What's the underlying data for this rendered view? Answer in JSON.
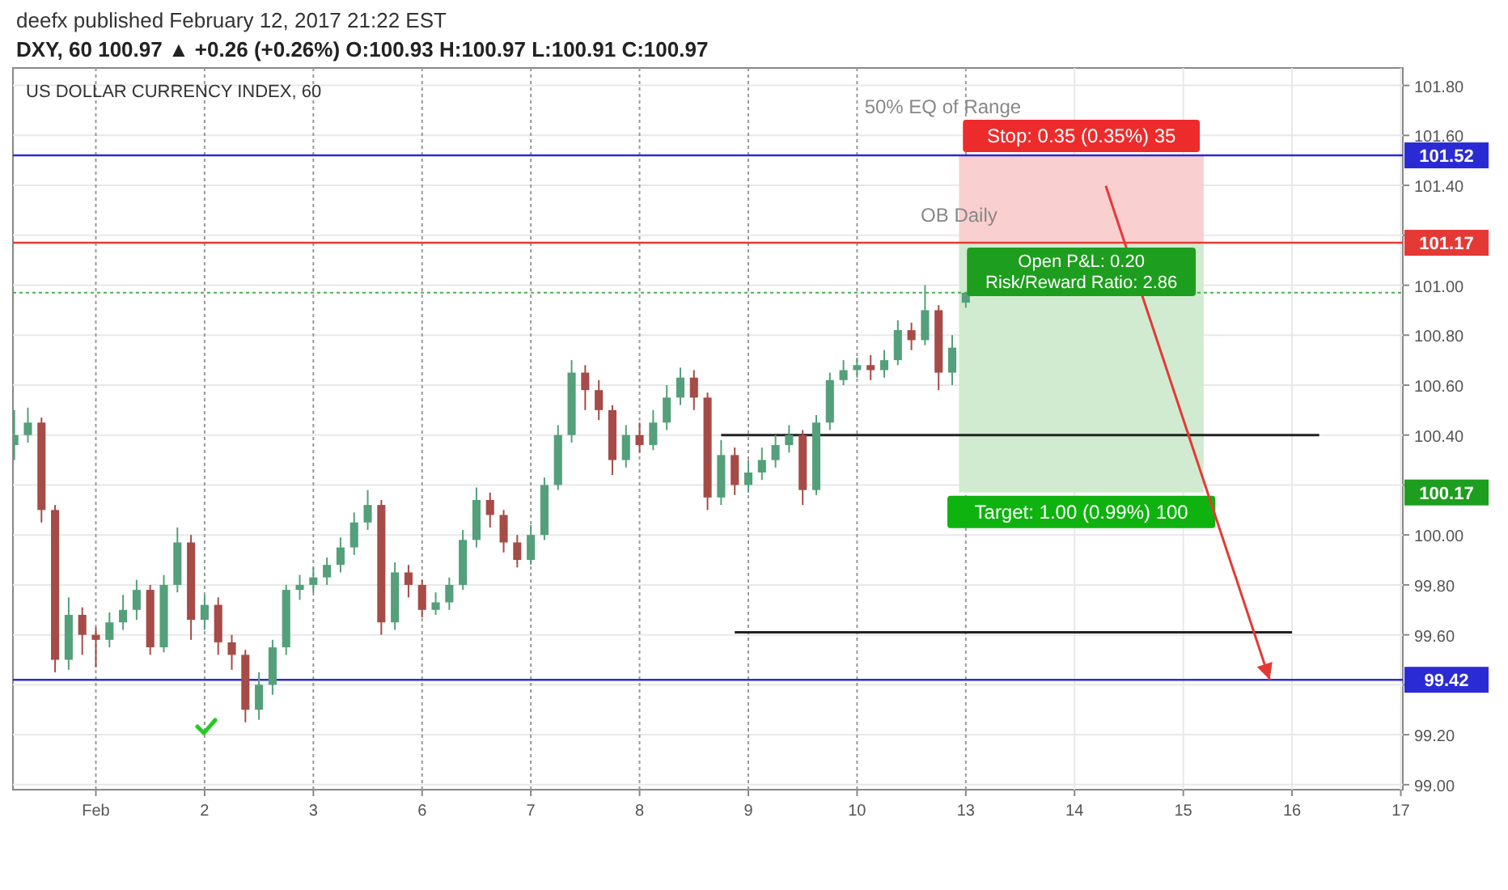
{
  "chart_data": {
    "type": "candlestick",
    "title": "US DOLLAR CURRENCY INDEX, 60",
    "subtitle": "DXY, 60 100.97 ▲ +0.26 (+0.26%) O:100.93 H:100.97 L:100.91 C:100.97",
    "annotations": [
      "deefx published February 12, 2017 21:22 EST",
      "50% EQ of Range",
      "OB Daily",
      "Open P&L: 0.20\nRisk/Reward Ratio: 2.86",
      "100.17"
    ],
    "categories": [
      null,
      null,
      null,
      null,
      null,
      null,
      "Feb",
      null,
      null,
      null,
      null,
      null,
      null,
      null,
      "2",
      null,
      null,
      null,
      null,
      null,
      null,
      null,
      "3",
      null,
      null,
      null,
      null,
      null,
      null,
      null,
      "6",
      null,
      null,
      null,
      null,
      null,
      null,
      null,
      "7",
      null,
      null,
      null,
      null,
      null,
      null,
      null,
      "8",
      null,
      null,
      null,
      null,
      null,
      null,
      null,
      "9",
      null,
      null,
      null,
      null,
      null,
      null,
      null,
      "10",
      null,
      null,
      null,
      null,
      null,
      null,
      null,
      "13",
      null,
      null,
      null,
      null,
      null,
      null,
      null,
      "14",
      null,
      null,
      null,
      null,
      null,
      null,
      null,
      "15",
      null,
      null,
      null,
      null,
      null,
      null,
      null,
      "16",
      null,
      null,
      null,
      null,
      null,
      null,
      null,
      "17"
    ],
    "ohlc": [
      [
        100.36,
        100.5,
        100.3,
        100.4
      ],
      [
        100.4,
        100.51,
        100.37,
        100.45
      ],
      [
        100.45,
        100.47,
        100.05,
        100.1
      ],
      [
        100.1,
        100.12,
        99.45,
        99.5
      ],
      [
        99.5,
        99.75,
        99.46,
        99.68
      ],
      [
        99.68,
        99.71,
        99.52,
        99.6
      ],
      [
        99.6,
        99.63,
        99.47,
        99.58
      ],
      [
        99.58,
        99.69,
        99.55,
        99.65
      ],
      [
        99.65,
        99.76,
        99.62,
        99.7
      ],
      [
        99.7,
        99.82,
        99.66,
        99.78
      ],
      [
        99.78,
        99.8,
        99.52,
        99.55
      ],
      [
        99.55,
        99.84,
        99.53,
        99.8
      ],
      [
        99.8,
        100.03,
        99.77,
        99.97
      ],
      [
        99.97,
        100.0,
        99.58,
        99.66
      ],
      [
        99.66,
        99.76,
        99.62,
        99.72
      ],
      [
        99.72,
        99.75,
        99.52,
        99.57
      ],
      [
        99.57,
        99.6,
        99.46,
        99.52
      ],
      [
        99.52,
        99.54,
        99.25,
        99.3
      ],
      [
        99.3,
        99.45,
        99.26,
        99.4
      ],
      [
        99.4,
        99.58,
        99.36,
        99.55
      ],
      [
        99.55,
        99.8,
        99.52,
        99.78
      ],
      [
        99.78,
        99.84,
        99.74,
        99.8
      ],
      [
        99.8,
        99.87,
        99.77,
        99.83
      ],
      [
        99.83,
        99.91,
        99.8,
        99.88
      ],
      [
        99.88,
        99.99,
        99.85,
        99.95
      ],
      [
        99.95,
        100.09,
        99.92,
        100.05
      ],
      [
        100.05,
        100.18,
        100.02,
        100.12
      ],
      [
        100.12,
        100.14,
        99.6,
        99.65
      ],
      [
        99.65,
        99.89,
        99.62,
        99.85
      ],
      [
        99.85,
        99.88,
        99.75,
        99.8
      ],
      [
        99.8,
        99.82,
        99.67,
        99.7
      ],
      [
        99.7,
        99.77,
        99.68,
        99.73
      ],
      [
        99.73,
        99.83,
        99.7,
        99.8
      ],
      [
        99.8,
        100.02,
        99.78,
        99.98
      ],
      [
        99.98,
        100.19,
        99.95,
        100.14
      ],
      [
        100.14,
        100.17,
        100.03,
        100.08
      ],
      [
        100.08,
        100.1,
        99.93,
        99.97
      ],
      [
        99.97,
        100.0,
        99.87,
        99.9
      ],
      [
        99.9,
        100.04,
        99.88,
        100.0
      ],
      [
        100.0,
        100.23,
        99.98,
        100.2
      ],
      [
        100.2,
        100.44,
        100.18,
        100.4
      ],
      [
        100.4,
        100.7,
        100.37,
        100.65
      ],
      [
        100.65,
        100.68,
        100.5,
        100.58
      ],
      [
        100.58,
        100.62,
        100.46,
        100.5
      ],
      [
        100.5,
        100.52,
        100.24,
        100.3
      ],
      [
        100.3,
        100.44,
        100.27,
        100.4
      ],
      [
        100.4,
        100.45,
        100.33,
        100.36
      ],
      [
        100.36,
        100.5,
        100.34,
        100.45
      ],
      [
        100.45,
        100.6,
        100.42,
        100.55
      ],
      [
        100.55,
        100.67,
        100.52,
        100.63
      ],
      [
        100.63,
        100.66,
        100.5,
        100.55
      ],
      [
        100.55,
        100.57,
        100.1,
        100.15
      ],
      [
        100.15,
        100.38,
        100.12,
        100.32
      ],
      [
        100.32,
        100.35,
        100.16,
        100.2
      ],
      [
        100.2,
        100.3,
        100.17,
        100.25
      ],
      [
        100.25,
        100.35,
        100.22,
        100.3
      ],
      [
        100.3,
        100.4,
        100.27,
        100.36
      ],
      [
        100.36,
        100.44,
        100.33,
        100.4
      ],
      [
        100.4,
        100.42,
        100.12,
        100.18
      ],
      [
        100.18,
        100.48,
        100.16,
        100.45
      ],
      [
        100.45,
        100.65,
        100.42,
        100.62
      ],
      [
        100.62,
        100.7,
        100.6,
        100.66
      ],
      [
        100.66,
        100.71,
        100.63,
        100.68
      ],
      [
        100.68,
        100.72,
        100.62,
        100.66
      ],
      [
        100.66,
        100.74,
        100.63,
        100.7
      ],
      [
        100.7,
        100.86,
        100.68,
        100.82
      ],
      [
        100.82,
        100.85,
        100.74,
        100.78
      ],
      [
        100.78,
        101.0,
        100.76,
        100.9
      ],
      [
        100.9,
        100.92,
        100.58,
        100.65
      ],
      [
        100.65,
        100.8,
        100.6,
        100.75
      ],
      [
        100.93,
        100.97,
        100.91,
        100.97
      ],
      null,
      null,
      null,
      null,
      null,
      null,
      null,
      null,
      null,
      null,
      null,
      null,
      null,
      null,
      null,
      null,
      null,
      null,
      null,
      null,
      null,
      null,
      null,
      null,
      null,
      null,
      null,
      null,
      null,
      null,
      null,
      null
    ],
    "colors": [
      "#53a07a",
      "#53a07a",
      "#a64b47",
      "#a64b47",
      "#53a07a",
      "#a64b47",
      "#a64b47",
      "#53a07a",
      "#53a07a",
      "#53a07a",
      "#a64b47",
      "#53a07a",
      "#53a07a",
      "#a64b47",
      "#53a07a",
      "#a64b47",
      "#a64b47",
      "#a64b47",
      "#53a07a",
      "#53a07a",
      "#53a07a",
      "#53a07a",
      "#53a07a",
      "#53a07a",
      "#53a07a",
      "#53a07a",
      "#53a07a",
      "#a64b47",
      "#53a07a",
      "#a64b47",
      "#a64b47",
      "#53a07a",
      "#53a07a",
      "#53a07a",
      "#53a07a",
      "#a64b47",
      "#a64b47",
      "#a64b47",
      "#53a07a",
      "#53a07a",
      "#53a07a",
      "#53a07a",
      "#a64b47",
      "#a64b47",
      "#a64b47",
      "#53a07a",
      "#a64b47",
      "#53a07a",
      "#53a07a",
      "#53a07a",
      "#a64b47",
      "#a64b47",
      "#53a07a",
      "#a64b47",
      "#53a07a",
      "#53a07a",
      "#53a07a",
      "#53a07a",
      "#a64b47",
      "#53a07a",
      "#53a07a",
      "#53a07a",
      "#53a07a",
      "#a64b47",
      "#53a07a",
      "#53a07a",
      "#a64b47",
      "#53a07a",
      "#a64b47",
      "#53a07a",
      "#53a07a",
      null,
      null,
      null,
      null,
      null,
      null,
      null,
      null,
      null,
      null,
      null,
      null,
      null,
      null,
      null,
      null,
      null,
      null,
      null,
      null,
      null,
      null,
      null,
      null,
      null,
      null,
      null,
      null,
      null,
      null,
      null,
      null
    ],
    "series": [
      {
        "type": "line",
        "color": "#222222",
        "values": [
          null,
          null,
          null,
          null,
          null,
          null,
          null,
          null,
          null,
          null,
          null,
          null,
          null,
          null,
          null,
          null,
          null,
          null,
          null,
          null,
          null,
          null,
          null,
          null,
          null,
          null,
          null,
          null,
          null,
          null,
          null,
          null,
          null,
          null,
          null,
          null,
          null,
          null,
          null,
          null,
          null,
          null,
          null,
          null,
          null,
          null,
          null,
          null,
          null,
          null,
          null,
          null,
          100.4,
          100.4,
          100.4,
          100.4,
          100.4,
          100.4,
          100.4,
          100.4,
          100.4,
          100.4,
          100.4,
          100.4,
          100.4,
          100.4,
          100.4,
          100.4,
          100.4,
          100.4,
          100.4,
          100.4,
          100.4,
          100.4,
          100.4,
          100.4,
          100.4,
          100.4,
          100.4,
          100.4,
          100.4,
          100.4,
          100.4,
          100.4,
          100.4,
          100.4,
          100.4,
          100.4,
          100.4,
          100.4,
          100.4,
          100.4,
          100.4,
          100.4,
          100.4,
          100.4,
          100.4,
          null,
          null,
          null,
          null,
          null,
          null
        ]
      },
      {
        "type": "line",
        "color": "#222222",
        "values": [
          null,
          null,
          null,
          null,
          null,
          null,
          null,
          null,
          null,
          null,
          null,
          null,
          null,
          null,
          null,
          null,
          null,
          null,
          null,
          null,
          null,
          null,
          null,
          null,
          null,
          null,
          null,
          null,
          null,
          null,
          null,
          null,
          null,
          null,
          null,
          null,
          null,
          null,
          null,
          null,
          null,
          null,
          null,
          null,
          null,
          null,
          null,
          null,
          null,
          null,
          null,
          null,
          null,
          99.61,
          99.61,
          99.61,
          99.61,
          99.61,
          99.61,
          99.61,
          99.61,
          99.61,
          99.61,
          99.61,
          99.61,
          99.61,
          99.61,
          99.61,
          99.61,
          99.61,
          99.61,
          99.61,
          99.61,
          99.61,
          99.61,
          99.61,
          99.61,
          99.61,
          99.61,
          99.61,
          99.61,
          99.61,
          99.61,
          99.61,
          99.61,
          99.61,
          99.61,
          99.61,
          99.61,
          99.61,
          99.61,
          99.61,
          99.61,
          99.61,
          99.61,
          null,
          null,
          null,
          null,
          null,
          null,
          null,
          null
        ]
      }
    ],
    "bands": [
      {
        "axis": "y",
        "from": 101.17,
        "to": 101.52,
        "label": "Stop: 0.35 (0.35%) 35",
        "color": "#f9cfcf"
      },
      {
        "axis": "y",
        "from": 100.17,
        "to": 101.17,
        "label": "Target: 1.00 (0.99%) 100",
        "color": "#d0ebd0"
      }
    ],
    "ref_lines": [
      {
        "axis": "y",
        "value": 101.52,
        "label": "101.52",
        "color": "#2b2bd6"
      },
      {
        "axis": "y",
        "value": 101.17,
        "label": "101.17",
        "color": "#e53935"
      },
      {
        "axis": "y",
        "value": 99.42,
        "label": "99.42",
        "color": "#2b2bd6"
      },
      {
        "axis": "y",
        "value": 100.97,
        "color": "#4caf50",
        "line_style": "dotted"
      }
    ],
    "ylim": [
      98.98,
      101.87
    ],
    "yticks": [
      {
        "value": 99,
        "label": "99.00"
      },
      {
        "value": 99.2,
        "label": "99.20"
      },
      {
        "value": 99.4,
        "label": null
      },
      {
        "value": 99.6,
        "label": "99.60"
      },
      {
        "value": 99.8,
        "label": "99.80"
      },
      {
        "value": 100,
        "label": "100.00"
      },
      {
        "value": 100.2,
        "label": null
      },
      {
        "value": 100.4,
        "label": "100.40"
      },
      {
        "value": 100.6,
        "label": "100.60"
      },
      {
        "value": 100.8,
        "label": "100.80"
      },
      {
        "value": 101,
        "label": "101.00"
      },
      {
        "value": 101.2,
        "label": null
      },
      {
        "value": 101.4,
        "label": "101.40"
      },
      {
        "value": 101.6,
        "label": "101.60"
      },
      {
        "value": 101.8,
        "label": "101.80"
      }
    ],
    "grid": true
  }
}
